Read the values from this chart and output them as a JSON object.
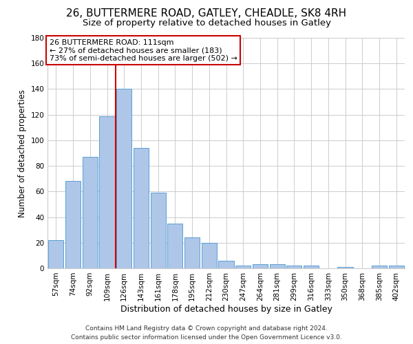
{
  "title1": "26, BUTTERMERE ROAD, GATLEY, CHEADLE, SK8 4RH",
  "title2": "Size of property relative to detached houses in Gatley",
  "xlabel": "Distribution of detached houses by size in Gatley",
  "ylabel": "Number of detached properties",
  "categories": [
    "57sqm",
    "74sqm",
    "92sqm",
    "109sqm",
    "126sqm",
    "143sqm",
    "161sqm",
    "178sqm",
    "195sqm",
    "212sqm",
    "230sqm",
    "247sqm",
    "264sqm",
    "281sqm",
    "299sqm",
    "316sqm",
    "333sqm",
    "350sqm",
    "368sqm",
    "385sqm",
    "402sqm"
  ],
  "values": [
    22,
    68,
    87,
    119,
    140,
    94,
    59,
    35,
    24,
    20,
    6,
    2,
    3,
    3,
    2,
    2,
    0,
    1,
    0,
    2,
    2
  ],
  "bar_color": "#aec6e8",
  "bar_edge_color": "#5a9fd4",
  "vline_index": 3.5,
  "vline_color": "#cc0000",
  "annotation_line1": "26 BUTTERMERE ROAD: 111sqm",
  "annotation_line2": "← 27% of detached houses are smaller (183)",
  "annotation_line3": "73% of semi-detached houses are larger (502) →",
  "annotation_box_color": "#cc0000",
  "annotation_box_fill": "#ffffff",
  "ylim": [
    0,
    180
  ],
  "yticks": [
    0,
    20,
    40,
    60,
    80,
    100,
    120,
    140,
    160,
    180
  ],
  "footer1": "Contains HM Land Registry data © Crown copyright and database right 2024.",
  "footer2": "Contains public sector information licensed under the Open Government Licence v3.0.",
  "title1_fontsize": 11,
  "title2_fontsize": 9.5,
  "xlabel_fontsize": 9,
  "ylabel_fontsize": 8.5,
  "tick_fontsize": 7.5,
  "annotation_fontsize": 8,
  "footer_fontsize": 6.5,
  "grid_color": "#cccccc",
  "background_color": "#ffffff"
}
